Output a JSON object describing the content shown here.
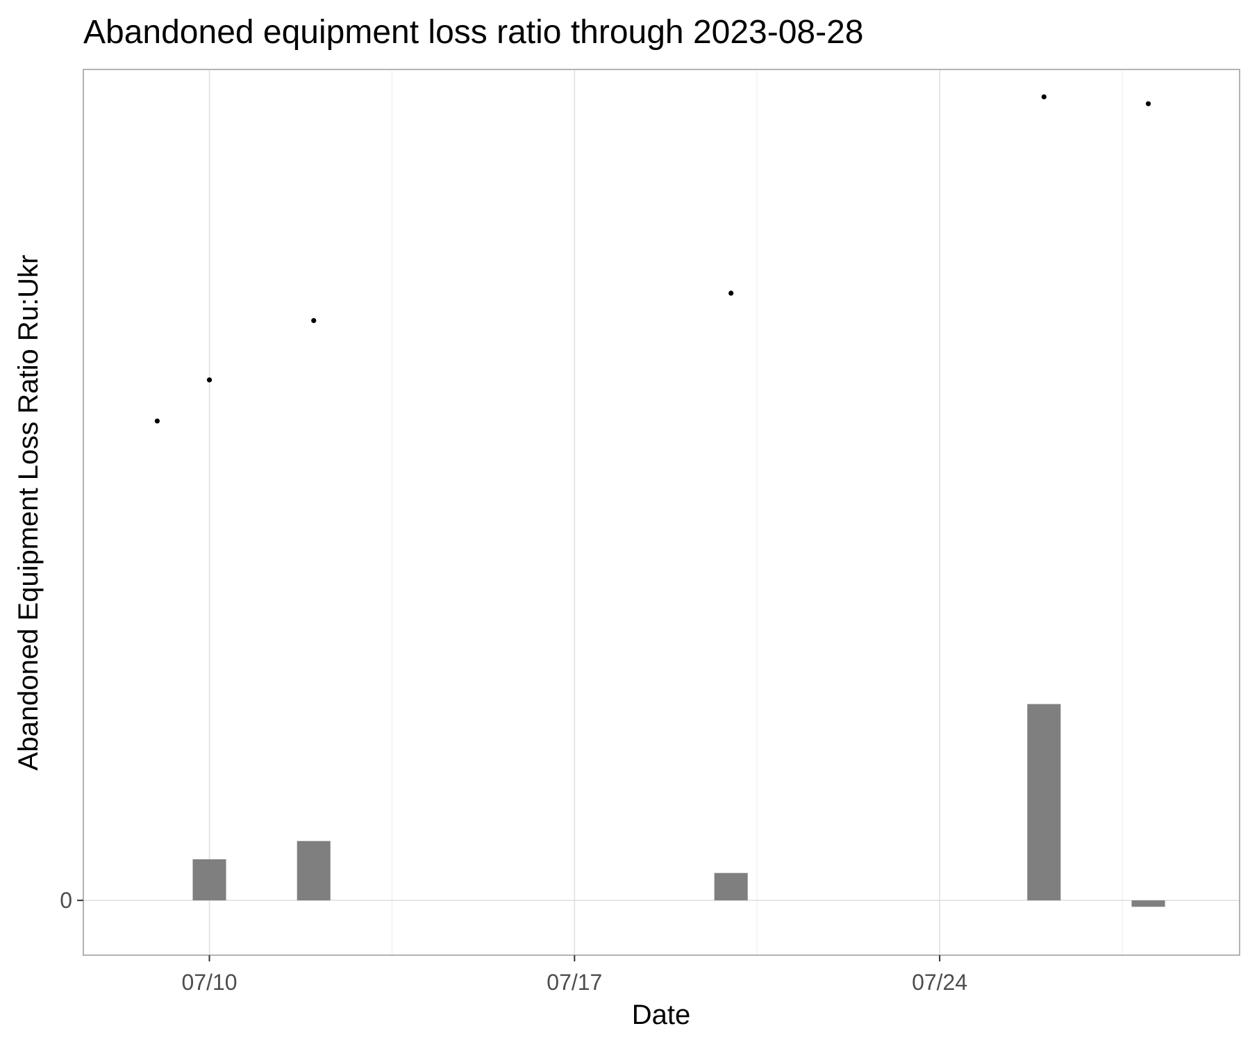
{
  "chart_data": {
    "type": "bar",
    "title": "Abandoned equipment loss ratio through 2023-08-28",
    "xlabel": "Date",
    "ylabel": "Abandoned Equipment Loss Ratio Ru:Ukr",
    "x_ticks": [
      "07/10",
      "07/17",
      "07/24"
    ],
    "y_ticks": [
      "0"
    ],
    "y_tick_values": [
      0
    ],
    "xlim": [
      "2023-07-07 14:00",
      "2023-07-29 18:00"
    ],
    "ylim": [
      -0.12,
      1.82
    ],
    "grid": true,
    "series": [
      {
        "type": "bar",
        "color": "#7f7f7f",
        "x": [
          "2023-07-10",
          "2023-07-12",
          "2023-07-20",
          "2023-07-26",
          "2023-07-28"
        ],
        "values": [
          0.09,
          0.13,
          0.06,
          0.43,
          -0.014
        ]
      },
      {
        "type": "point",
        "color": "#000000",
        "x": [
          "2023-07-09",
          "2023-07-10",
          "2023-07-12",
          "2023-07-20",
          "2023-07-26",
          "2023-07-28"
        ],
        "values": [
          1.05,
          1.14,
          1.27,
          1.33,
          1.76,
          1.745
        ]
      }
    ]
  }
}
